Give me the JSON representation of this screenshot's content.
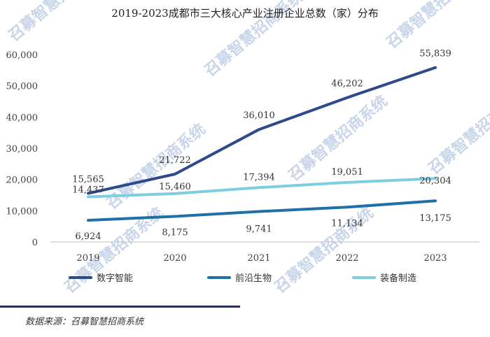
{
  "chart_data": {
    "type": "line",
    "title": "2019-2023成都市三大核心产业注册企业总数（家）分布",
    "categories": [
      "2019",
      "2020",
      "2021",
      "2022",
      "2023"
    ],
    "ylim": [
      0,
      60000
    ],
    "yticks": [
      0,
      10000,
      20000,
      30000,
      40000,
      50000,
      60000
    ],
    "ytick_labels": [
      "0",
      "10,000",
      "20,000",
      "30,000",
      "40,000",
      "50,000",
      "60,000"
    ],
    "grid": false,
    "legend_position": "bottom",
    "series": [
      {
        "name": "数字智能",
        "color": "#2e4a8b",
        "values": [
          15565,
          21722,
          36010,
          46202,
          55839
        ],
        "labels": [
          "15,565",
          "21,722",
          "36,010",
          "46,202",
          "55,839"
        ]
      },
      {
        "name": "前沿生物",
        "color": "#1f6fa8",
        "values": [
          6924,
          8175,
          9741,
          11134,
          13175
        ],
        "labels": [
          "6,924",
          "8,175",
          "9,741",
          "11,134",
          "13,175"
        ]
      },
      {
        "name": "装备制造",
        "color": "#7ccfe0",
        "values": [
          14437,
          15460,
          17394,
          19051,
          20304
        ],
        "labels": [
          "14,437",
          "15,460",
          "17,394",
          "19,051",
          "20,304"
        ]
      }
    ],
    "source": "数据来源：召募智慧招商系统",
    "watermark": "召募智慧招商系统"
  }
}
